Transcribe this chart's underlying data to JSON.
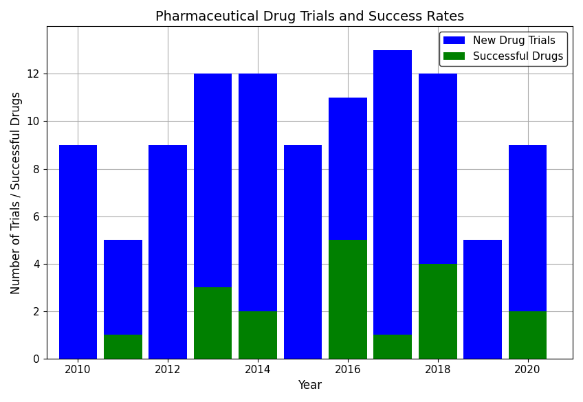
{
  "years": [
    2010,
    2011,
    2012,
    2013,
    2014,
    2015,
    2016,
    2017,
    2018,
    2019,
    2020
  ],
  "total_trials": [
    9,
    5,
    9,
    12,
    12,
    9,
    11,
    13,
    12,
    5,
    9
  ],
  "successful_drugs": [
    0,
    1,
    0,
    3,
    2,
    0,
    5,
    1,
    4,
    0,
    2
  ],
  "bar_color_blue": "#0000ff",
  "bar_color_green": "#008000",
  "title": "Pharmaceutical Drug Trials and Success Rates",
  "xlabel": "Year",
  "ylabel": "Number of Trials / Successful Drugs",
  "legend_labels": [
    "New Drug Trials",
    "Successful Drugs"
  ],
  "ylim": [
    0,
    14
  ],
  "bar_width": 0.85,
  "grid_color": "#aaaaaa",
  "background_color": "#ffffff",
  "title_fontsize": 14,
  "label_fontsize": 12,
  "tick_fontsize": 11
}
